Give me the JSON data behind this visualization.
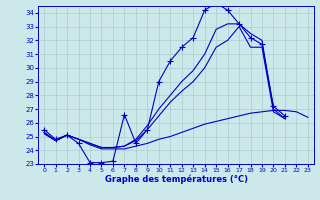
{
  "title": "Graphe des températures (°C)",
  "bg_color": "#cce8ea",
  "line_color": "#0000cc",
  "grid_color": "#aacccc",
  "ylim": [
    23,
    34.5
  ],
  "xlim": [
    -0.5,
    23.5
  ],
  "yticks": [
    23,
    24,
    25,
    26,
    27,
    28,
    29,
    30,
    31,
    32,
    33,
    34
  ],
  "xticks": [
    0,
    1,
    2,
    3,
    4,
    5,
    6,
    7,
    8,
    9,
    10,
    11,
    12,
    13,
    14,
    15,
    16,
    17,
    18,
    19,
    20,
    21,
    22,
    23
  ],
  "series": [
    {
      "x": [
        0,
        1,
        2,
        3,
        4,
        5,
        6,
        7,
        8,
        9,
        10,
        11,
        12,
        13,
        14,
        15,
        16,
        17,
        18,
        19,
        20,
        21,
        22,
        23
      ],
      "y": [
        25.5,
        24.8,
        25.1,
        24.5,
        23.1,
        23.1,
        23.2,
        26.6,
        24.5,
        25.5,
        29.0,
        30.5,
        31.5,
        32.2,
        34.2,
        34.7,
        34.2,
        33.2,
        32.2,
        31.7,
        27.2,
        26.5,
        null,
        null
      ],
      "marker": true
    },
    {
      "x": [
        0,
        1,
        2,
        3,
        4,
        5,
        6,
        7,
        8,
        9,
        10,
        11,
        12,
        13,
        14,
        15,
        16,
        17,
        18,
        19,
        20,
        21,
        22,
        23
      ],
      "y": [
        25.2,
        24.7,
        25.1,
        24.8,
        24.4,
        24.1,
        24.1,
        24.1,
        24.3,
        24.5,
        24.8,
        25.0,
        25.3,
        25.6,
        25.9,
        26.1,
        26.3,
        26.5,
        26.7,
        26.8,
        26.9,
        26.9,
        26.8,
        26.4
      ],
      "marker": false
    },
    {
      "x": [
        0,
        1,
        2,
        3,
        4,
        5,
        6,
        7,
        8,
        9,
        10,
        11,
        12,
        13,
        14,
        15,
        16,
        17,
        18,
        19,
        20,
        21,
        22,
        23
      ],
      "y": [
        25.3,
        24.7,
        25.1,
        24.8,
        24.5,
        24.2,
        24.2,
        24.3,
        24.7,
        25.5,
        26.5,
        27.5,
        28.3,
        29.0,
        30.0,
        31.5,
        32.0,
        33.0,
        31.5,
        31.5,
        26.8,
        26.3,
        null,
        null
      ],
      "marker": false
    },
    {
      "x": [
        0,
        1,
        2,
        3,
        4,
        5,
        6,
        7,
        8,
        9,
        10,
        11,
        12,
        13,
        14,
        15,
        16,
        17,
        18,
        19,
        20,
        21,
        22,
        23
      ],
      "y": [
        25.3,
        24.7,
        25.1,
        24.8,
        24.5,
        24.2,
        24.2,
        24.3,
        24.8,
        25.8,
        27.0,
        28.0,
        29.0,
        29.8,
        31.0,
        32.8,
        33.2,
        33.2,
        32.5,
        32.0,
        27.0,
        26.3,
        null,
        null
      ],
      "marker": false
    }
  ]
}
